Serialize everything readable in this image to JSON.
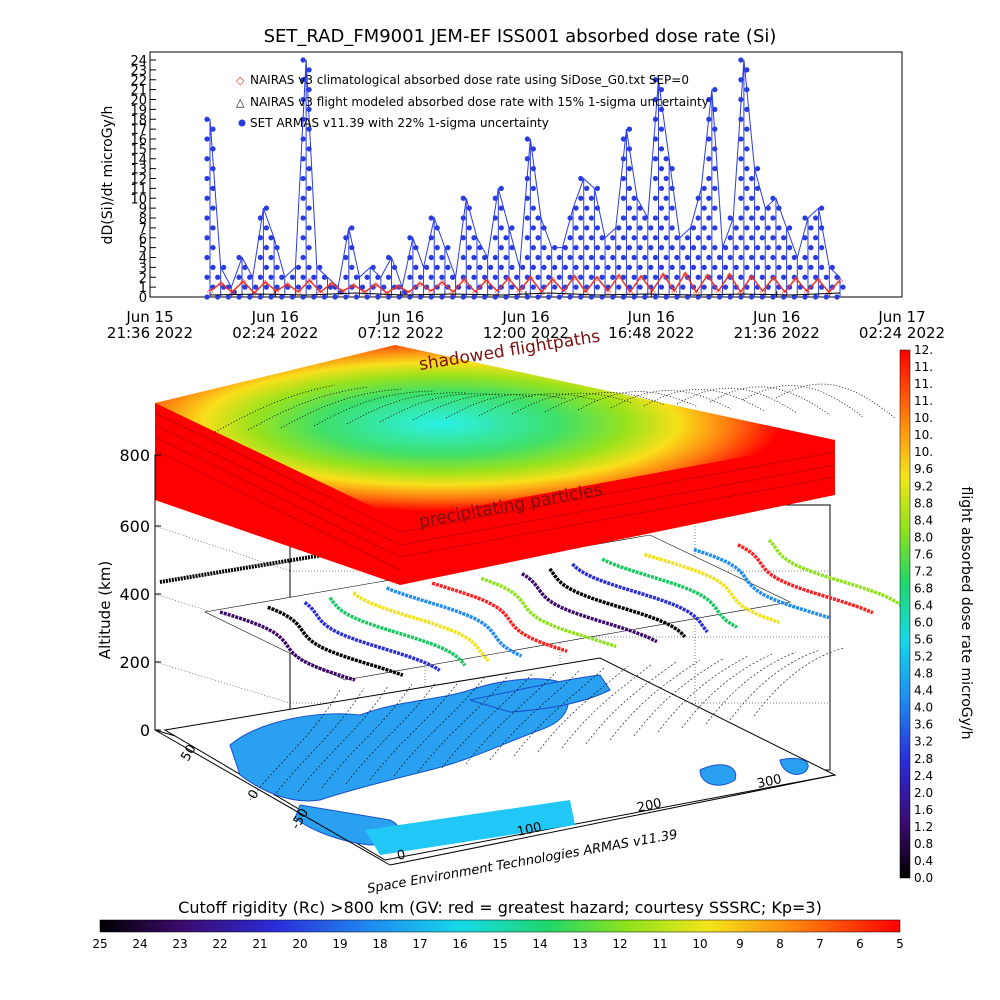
{
  "title": "SET_RAD_FM9001  JEM-EF ISS001 absorbed dose rate (Si)",
  "chart_data": [
    {
      "type": "line",
      "ylabel": "dD(Si)/dt microGy/h",
      "ylim": [
        0,
        24
      ],
      "y_ticks": [
        "0",
        "1",
        "2",
        "3",
        "4",
        "5",
        "6",
        "7",
        "8",
        "9",
        "10",
        "11",
        "12",
        "13",
        "14",
        "15",
        "16",
        "17",
        "18",
        "19",
        "20",
        "21",
        "22",
        "23",
        "24"
      ],
      "x_ticks": [
        {
          "day": "Jun 15",
          "time": "21:36 2022"
        },
        {
          "day": "Jun 16",
          "time": "02:24 2022"
        },
        {
          "day": "Jun 16",
          "time": "07:12 2022"
        },
        {
          "day": "Jun 16",
          "time": "12:00 2022"
        },
        {
          "day": "Jun 16",
          "time": "16:48 2022"
        },
        {
          "day": "Jun 16",
          "time": "21:36 2022"
        },
        {
          "day": "Jun 17",
          "time": "02:24 2022"
        }
      ],
      "series": [
        {
          "name": "NAIRAS v3 climatological absorbed dose rate using SiDose_G0.txt SEP=0",
          "color": "#e8352a",
          "values": [
            0.6,
            1.4,
            0.5,
            1.6,
            0.4,
            1.5,
            0.6,
            1.3,
            0.5,
            1.7,
            0.5,
            1.4,
            0.6,
            1.2,
            0.5,
            1.3,
            0.4,
            1.1,
            0.5,
            1.4,
            0.6,
            1.5,
            0.5,
            1.8,
            0.5,
            1.7,
            0.6,
            1.9,
            0.6,
            2.0,
            0.5,
            1.8,
            0.6,
            2.1,
            0.5,
            2.0,
            0.6,
            2.2,
            0.5,
            2.1,
            0.6,
            2.3,
            0.6,
            2.4,
            0.5,
            2.2,
            0.6,
            2.3,
            0.5,
            2.1,
            0.6,
            2.0,
            0.5,
            1.9,
            0.6,
            1.8,
            0.5,
            1.7
          ]
        },
        {
          "name": "NAIRAS v3 flight modeled absorbed dose rate with 15% 1-sigma uncertainty",
          "color": "#000000",
          "values": [
            0.2,
            0.3,
            0.2,
            0.4,
            0.2,
            0.3,
            0.2,
            0.4,
            0.2,
            0.3,
            0.2,
            0.3,
            0.2,
            0.4
          ]
        },
        {
          "name": "SET ARMAS v11.39 with 22% 1-sigma uncertainty",
          "color": "#2a3cdf",
          "values": [
            18,
            3,
            1,
            4,
            2,
            9,
            6,
            2,
            3,
            24,
            3,
            2,
            1,
            7,
            2,
            3,
            2,
            4,
            1,
            6,
            3,
            8,
            5,
            2,
            10,
            6,
            4,
            11,
            7,
            3,
            16,
            8,
            5,
            5,
            9,
            12,
            11,
            6,
            7,
            17,
            10,
            8,
            22,
            14,
            6,
            7,
            11,
            21,
            5,
            8,
            24,
            13,
            9,
            10,
            7,
            4,
            8,
            9,
            3,
            2
          ]
        }
      ]
    },
    {
      "type": "surface3d",
      "zlabel": "Altitude (km)",
      "z_ticks": [
        "0",
        "200",
        "400",
        "600",
        "800"
      ],
      "x_ticks": [
        "0",
        "100",
        "200",
        "300"
      ],
      "y_ticks": [
        "-50",
        "0",
        "50"
      ],
      "annotations": [
        "shadowed flightpaths",
        "precipitating particles"
      ],
      "colorbar_label": "flight absorbed dose rate microGy/h",
      "colorbar_ticks": [
        "0.0",
        "0.4",
        "0.8",
        "1.2",
        "1.6",
        "2.0",
        "2.4",
        "2.8",
        "3.2",
        "3.6",
        "4.0",
        "4.4",
        "4.8",
        "5.2",
        "5.6",
        "6.0",
        "6.4",
        "6.8",
        "7.2",
        "7.6",
        "8.0",
        "8.4",
        "8.8",
        "9.2",
        "9.6",
        "10.",
        "10.",
        "10.",
        "11.",
        "11.",
        "11.",
        "12."
      ]
    },
    {
      "type": "colorbar",
      "label": "Cutoff rigidity (Rc) >800 km (GV: red = greatest hazard; courtesy SSSRC; Kp=3)",
      "ticks": [
        "25",
        "24",
        "23",
        "22",
        "21",
        "20",
        "19",
        "18",
        "17",
        "16",
        "15",
        "14",
        "13",
        "12",
        "11",
        "10",
        "9",
        "8",
        "7",
        "6",
        "5"
      ]
    }
  ],
  "credit": "Space Environment Technologies ARMAS v11.39",
  "colors": {
    "red": "#ff0000",
    "blue": "#2a3cdf",
    "axis": "#000000"
  }
}
